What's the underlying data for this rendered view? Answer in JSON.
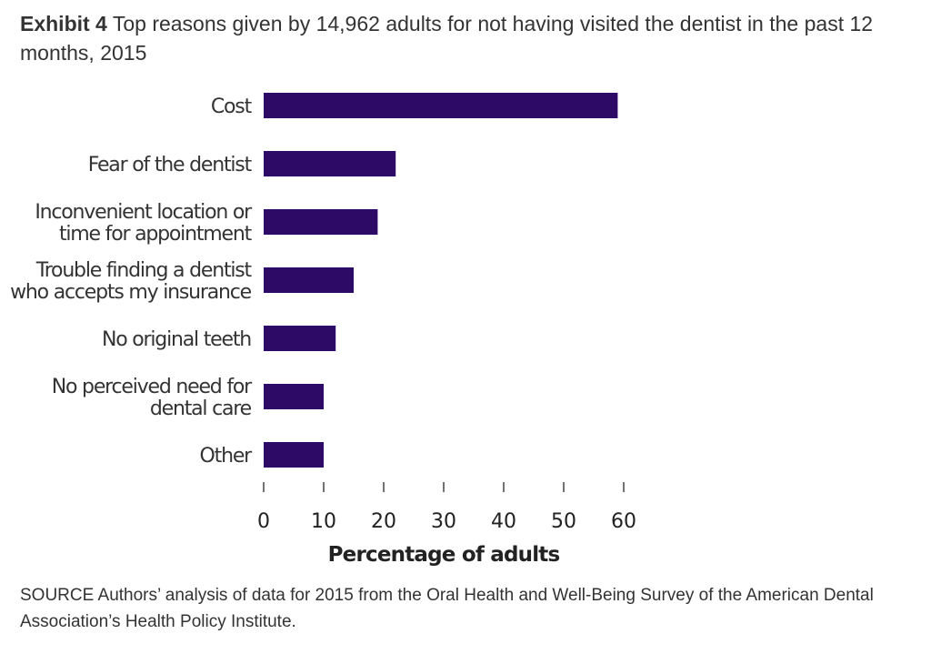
{
  "title": {
    "label": "Exhibit 4",
    "text": "Top reasons given by 14,962 adults for not having visited the dentist in the past 12 months, 2015"
  },
  "source": "SOURCE Authors’ analysis of data for 2015 from the Oral Health and Well-Being Survey of the American Dental Association’s Health Policy Institute.",
  "colors": {
    "bar": "#2d0a66",
    "text": "#333333",
    "tick": "#444444",
    "axis_label": "#222222"
  },
  "chart_data": {
    "type": "bar",
    "orientation": "horizontal",
    "categories": [
      [
        "Cost"
      ],
      [
        "Fear of the dentist"
      ],
      [
        "Inconvenient location or",
        "time for appointment"
      ],
      [
        "Trouble finding a dentist",
        "who accepts my insurance"
      ],
      [
        "No original teeth"
      ],
      [
        "No perceived need for",
        "dental care"
      ],
      [
        "Other"
      ]
    ],
    "values": [
      59,
      22,
      19,
      15,
      12,
      10,
      10
    ],
    "xlabel": "Percentage of adults",
    "ylabel": "",
    "xlim": [
      0,
      60
    ],
    "ticks": [
      0,
      10,
      20,
      30,
      40,
      50,
      60
    ],
    "grid": false,
    "legend": "none"
  }
}
